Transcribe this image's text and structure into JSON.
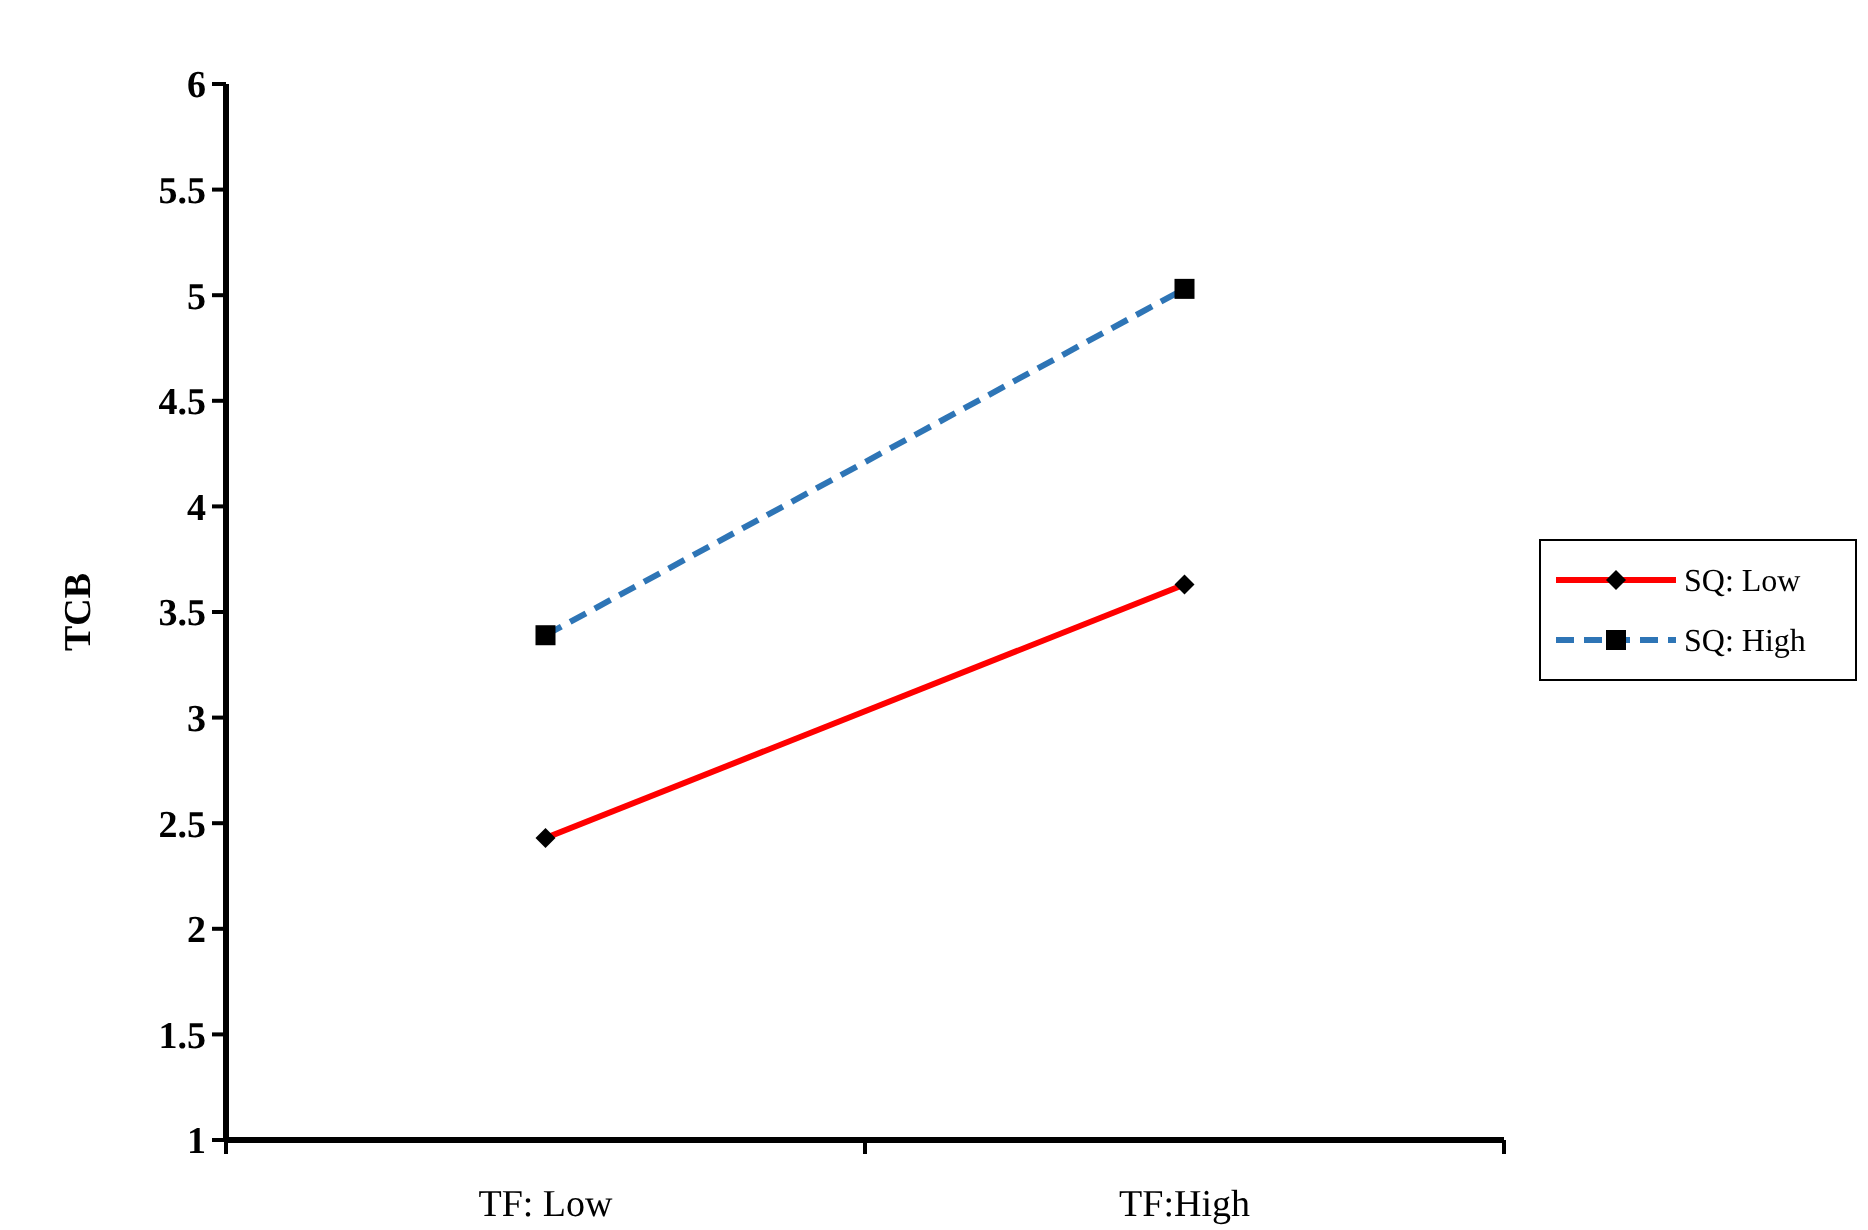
{
  "chart_data": {
    "type": "line",
    "ylabel": "TCB",
    "categories": [
      "TF: Low",
      "TF:High"
    ],
    "ylim": [
      1,
      6
    ],
    "yticks": [
      1,
      1.5,
      2,
      2.5,
      3,
      3.5,
      4,
      4.5,
      5,
      5.5,
      6
    ],
    "grid": false,
    "legend": "right",
    "series": [
      {
        "name": "SQ: Low",
        "color": "#ff0000",
        "values": [
          2.43,
          3.63
        ],
        "marker": "diamond",
        "line_style": "solid"
      },
      {
        "name": "SQ: High",
        "color": "#2e75b6",
        "values": [
          3.39,
          5.03
        ],
        "marker": "square",
        "line_style": "dashed"
      }
    ]
  }
}
